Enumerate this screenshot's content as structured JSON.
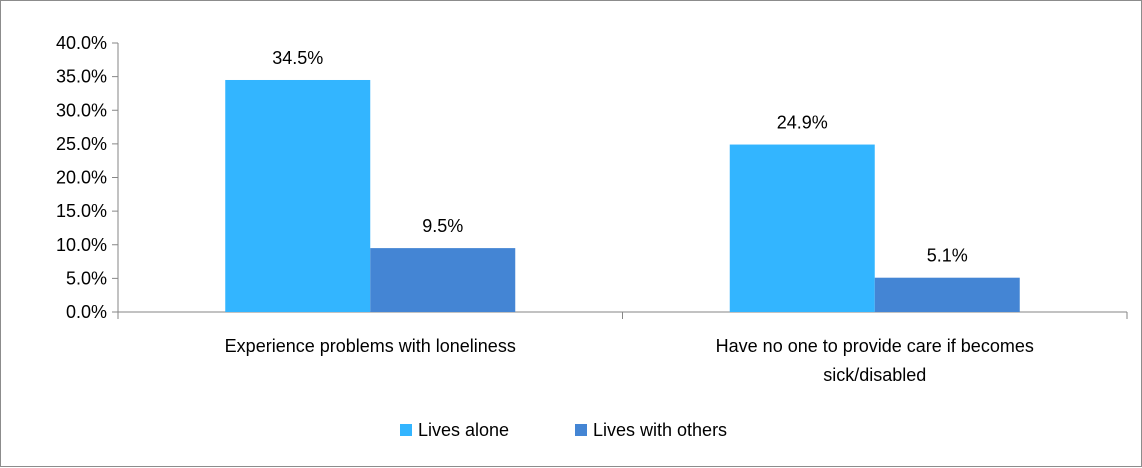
{
  "chart_data": {
    "type": "bar",
    "categories": [
      [
        "Experience problems with loneliness"
      ],
      [
        "Have no one to provide care if becomes",
        "sick/disabled"
      ]
    ],
    "series": [
      {
        "name": "Lives alone",
        "color": "#33b5ff",
        "values": [
          34.5,
          24.9
        ],
        "labels": [
          "34.5%",
          "24.9%"
        ]
      },
      {
        "name": "Lives with others",
        "color": "#4485d4",
        "values": [
          9.5,
          5.1
        ],
        "labels": [
          "9.5%",
          "5.1%"
        ]
      }
    ],
    "ylim": [
      0,
      40
    ],
    "yticks": [
      "0.0%",
      "5.0%",
      "10.0%",
      "15.0%",
      "20.0%",
      "25.0%",
      "30.0%",
      "35.0%",
      "40.0%"
    ],
    "title": "",
    "xlabel": "",
    "ylabel": "",
    "grid": false,
    "legend_position": "bottom"
  }
}
